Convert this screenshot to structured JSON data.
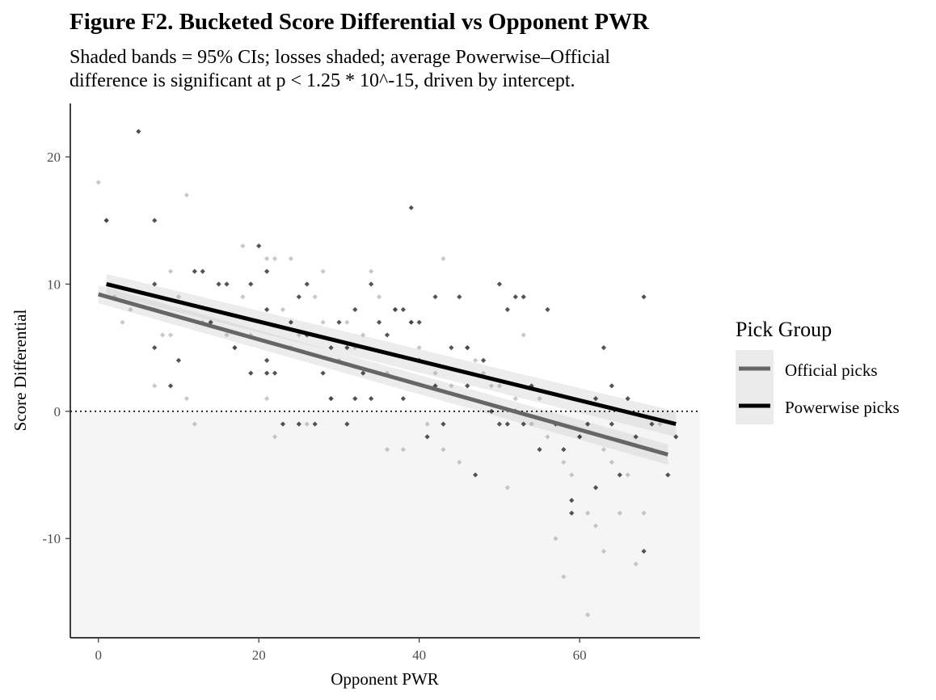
{
  "chart_data": {
    "type": "scatter",
    "title": "Figure F2. Bucketed Score Differential vs Opponent PWR",
    "subtitle": [
      "Shaded bands = 95% CIs; losses shaded; average Powerwise–Official",
      "difference is significant at p < 1.25 * 10^-15, driven by intercept."
    ],
    "xlabel": "Opponent PWR",
    "ylabel": "Score Differential",
    "xlim": [
      -3.5,
      75
    ],
    "ylim": [
      -17.8,
      24.2
    ],
    "x_ticks": [
      0,
      20,
      40,
      60
    ],
    "y_ticks": [
      -10,
      0,
      10,
      20
    ],
    "reference_line_y": 0,
    "loss_region": "y < 0 shaded",
    "legend": {
      "title": "Pick Group",
      "position": "right",
      "entries": [
        "Official picks",
        "Powerwise picks"
      ]
    },
    "series": [
      {
        "name": "Official picks",
        "color": "#666666",
        "point_color": "#9a9a9a",
        "fit": {
          "x": [
            0,
            71
          ],
          "y": [
            9.2,
            -3.4
          ]
        },
        "ci": {
          "x": [
            0,
            71
          ],
          "lower": [
            8.5,
            -4.2
          ],
          "upper": [
            9.9,
            -2.6
          ]
        },
        "points": [
          [
            0,
            18
          ],
          [
            1,
            15
          ],
          [
            2,
            9
          ],
          [
            3,
            7
          ],
          [
            4,
            8
          ],
          [
            7,
            8
          ],
          [
            7,
            2
          ],
          [
            8,
            6
          ],
          [
            9,
            11
          ],
          [
            9,
            6
          ],
          [
            10,
            9
          ],
          [
            11,
            17
          ],
          [
            11,
            1
          ],
          [
            12,
            -1
          ],
          [
            13,
            7
          ],
          [
            16,
            6
          ],
          [
            17,
            5
          ],
          [
            18,
            13
          ],
          [
            18,
            9
          ],
          [
            19,
            6
          ],
          [
            21,
            12
          ],
          [
            21,
            1
          ],
          [
            22,
            -2
          ],
          [
            22,
            12
          ],
          [
            23,
            8
          ],
          [
            24,
            5
          ],
          [
            24,
            12
          ],
          [
            25,
            6
          ],
          [
            26,
            -1
          ],
          [
            27,
            9
          ],
          [
            28,
            11
          ],
          [
            28,
            7
          ],
          [
            29,
            1
          ],
          [
            30,
            4
          ],
          [
            31,
            7
          ],
          [
            32,
            5
          ],
          [
            33,
            6
          ],
          [
            34,
            11
          ],
          [
            35,
            9
          ],
          [
            36,
            -3
          ],
          [
            36,
            3
          ],
          [
            37,
            8
          ],
          [
            38,
            -3
          ],
          [
            39,
            7
          ],
          [
            40,
            5
          ],
          [
            41,
            -1
          ],
          [
            42,
            3
          ],
          [
            43,
            -3
          ],
          [
            43,
            12
          ],
          [
            44,
            2
          ],
          [
            45,
            -4
          ],
          [
            46,
            5
          ],
          [
            47,
            4
          ],
          [
            48,
            3
          ],
          [
            49,
            2
          ],
          [
            50,
            2
          ],
          [
            51,
            -6
          ],
          [
            52,
            1
          ],
          [
            53,
            6
          ],
          [
            54,
            -1
          ],
          [
            55,
            1
          ],
          [
            56,
            -2
          ],
          [
            57,
            -10
          ],
          [
            58,
            -13
          ],
          [
            58,
            -4
          ],
          [
            59,
            -5
          ],
          [
            60,
            -2
          ],
          [
            61,
            -8
          ],
          [
            61,
            -16
          ],
          [
            62,
            -9
          ],
          [
            63,
            -11
          ],
          [
            63,
            -3
          ],
          [
            64,
            -4
          ],
          [
            65,
            -8
          ],
          [
            66,
            -5
          ],
          [
            67,
            -12
          ],
          [
            68,
            -8
          ],
          [
            69,
            -3
          ],
          [
            70,
            -1
          ]
        ]
      },
      {
        "name": "Powerwise picks",
        "color": "#000000",
        "point_color": "#1a1a1a",
        "fit": {
          "x": [
            1,
            72
          ],
          "y": [
            10.0,
            -1.0
          ]
        },
        "ci": {
          "x": [
            1,
            72
          ],
          "lower": [
            9.2,
            -2.0
          ],
          "upper": [
            10.8,
            0.0
          ]
        },
        "points": [
          [
            1,
            15
          ],
          [
            5,
            22
          ],
          [
            7,
            15
          ],
          [
            7,
            10
          ],
          [
            7,
            5
          ],
          [
            9,
            2
          ],
          [
            10,
            4
          ],
          [
            12,
            11
          ],
          [
            13,
            11
          ],
          [
            14,
            7
          ],
          [
            15,
            10
          ],
          [
            16,
            10
          ],
          [
            17,
            5
          ],
          [
            19,
            10
          ],
          [
            19,
            3
          ],
          [
            20,
            13
          ],
          [
            21,
            11
          ],
          [
            21,
            8
          ],
          [
            21,
            4
          ],
          [
            21,
            3
          ],
          [
            22,
            3
          ],
          [
            23,
            -1
          ],
          [
            24,
            7
          ],
          [
            25,
            9
          ],
          [
            25,
            -1
          ],
          [
            26,
            10
          ],
          [
            26,
            6
          ],
          [
            27,
            -1
          ],
          [
            28,
            3
          ],
          [
            29,
            1
          ],
          [
            29,
            5
          ],
          [
            30,
            7
          ],
          [
            31,
            5
          ],
          [
            31,
            -1
          ],
          [
            32,
            1
          ],
          [
            32,
            8
          ],
          [
            33,
            3
          ],
          [
            34,
            10
          ],
          [
            34,
            1
          ],
          [
            35,
            7
          ],
          [
            36,
            6
          ],
          [
            37,
            8
          ],
          [
            38,
            8
          ],
          [
            38,
            1
          ],
          [
            39,
            16
          ],
          [
            39,
            7
          ],
          [
            40,
            4
          ],
          [
            40,
            7
          ],
          [
            41,
            -2
          ],
          [
            42,
            9
          ],
          [
            42,
            2
          ],
          [
            43,
            -1
          ],
          [
            44,
            5
          ],
          [
            45,
            9
          ],
          [
            46,
            2
          ],
          [
            46,
            5
          ],
          [
            47,
            -5
          ],
          [
            48,
            4
          ],
          [
            49,
            0
          ],
          [
            50,
            10
          ],
          [
            50,
            -1
          ],
          [
            51,
            8
          ],
          [
            51,
            -1
          ],
          [
            52,
            9
          ],
          [
            52,
            0
          ],
          [
            53,
            9
          ],
          [
            53,
            -1
          ],
          [
            54,
            2
          ],
          [
            55,
            -3
          ],
          [
            56,
            8
          ],
          [
            57,
            -1
          ],
          [
            58,
            -3
          ],
          [
            59,
            -8
          ],
          [
            59,
            -7
          ],
          [
            60,
            -2
          ],
          [
            61,
            -1
          ],
          [
            62,
            1
          ],
          [
            62,
            -6
          ],
          [
            63,
            5
          ],
          [
            64,
            2
          ],
          [
            64,
            -1
          ],
          [
            65,
            -5
          ],
          [
            66,
            1
          ],
          [
            67,
            -2
          ],
          [
            68,
            -11
          ],
          [
            68,
            9
          ],
          [
            69,
            -1
          ],
          [
            71,
            -5
          ],
          [
            72,
            -2
          ]
        ]
      }
    ]
  }
}
